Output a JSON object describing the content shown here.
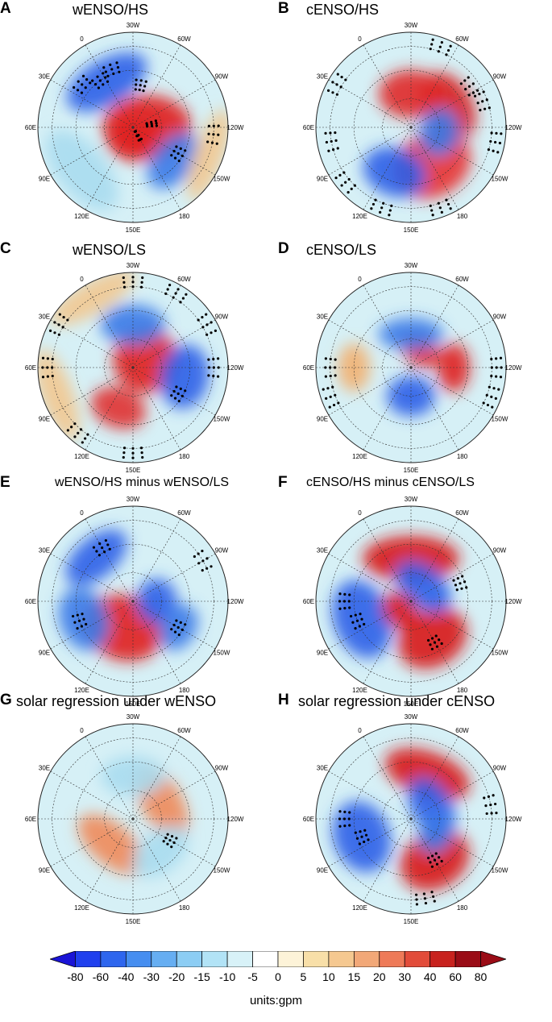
{
  "panels": [
    {
      "letter": "A",
      "title": "wENSO/HS",
      "lon_labels": [
        "0",
        "30W",
        "60W",
        "90W",
        "120W",
        "150W",
        "180",
        "150E",
        "120E",
        "90E",
        "60E",
        "30E"
      ],
      "blobs": [
        [
          "#2b5fe8",
          -30,
          0.55,
          55,
          28
        ],
        [
          "#e02020",
          90,
          0.15,
          40,
          55
        ],
        [
          "#e02020",
          175,
          0.1,
          35,
          30
        ],
        [
          "#3a7ae8",
          130,
          0.55,
          40,
          25
        ],
        [
          "#f2c890",
          110,
          0.85,
          60,
          18
        ],
        [
          "#a8dcef",
          230,
          0.7,
          60,
          30
        ]
      ],
      "dots": [
        [
          -20,
          0.65
        ],
        [
          -35,
          0.6
        ],
        [
          -50,
          0.7
        ],
        [
          10,
          0.45
        ],
        [
          80,
          0.2
        ],
        [
          150,
          0.1
        ],
        [
          120,
          0.55
        ],
        [
          95,
          0.85
        ]
      ]
    },
    {
      "letter": "B",
      "title": "cENSO/HS",
      "lon_labels": [
        "0",
        "30W",
        "60W",
        "90W",
        "120W",
        "150W",
        "180",
        "150E",
        "120E",
        "90E",
        "60E",
        "30E"
      ],
      "blobs": [
        [
          "#d8201c",
          60,
          0.45,
          45,
          30
        ],
        [
          "#e83030",
          150,
          0.45,
          50,
          40
        ],
        [
          "#2b5fe8",
          200,
          0.5,
          40,
          30
        ],
        [
          "#e02828",
          0,
          0.35,
          40,
          30
        ],
        [
          "#3a7ae8",
          100,
          0.3,
          30,
          25
        ]
      ],
      "dots": [
        [
          55,
          0.75
        ],
        [
          70,
          0.8
        ],
        [
          100,
          0.9
        ],
        [
          160,
          0.9
        ],
        [
          200,
          0.9
        ],
        [
          230,
          0.9
        ],
        [
          260,
          0.85
        ],
        [
          300,
          0.9
        ],
        [
          20,
          0.9
        ]
      ]
    },
    {
      "letter": "C",
      "title": "wENSO/LS",
      "lon_labels": [
        "0",
        "30W",
        "60W",
        "90W",
        "120W",
        "150W",
        "180",
        "150E",
        "120E",
        "90E",
        "60E",
        "30E"
      ],
      "blobs": [
        [
          "#e02020",
          60,
          0.15,
          40,
          40
        ],
        [
          "#2b5fe8",
          100,
          0.55,
          40,
          30
        ],
        [
          "#e03030",
          200,
          0.45,
          35,
          25
        ],
        [
          "#3a7ae8",
          0,
          0.45,
          40,
          25
        ],
        [
          "#f2c890",
          250,
          0.85,
          60,
          20
        ],
        [
          "#f2c890",
          330,
          0.85,
          60,
          20
        ]
      ],
      "dots": [
        [
          0,
          0.9
        ],
        [
          30,
          0.9
        ],
        [
          60,
          0.9
        ],
        [
          90,
          0.85
        ],
        [
          180,
          0.9
        ],
        [
          220,
          0.9
        ],
        [
          270,
          0.9
        ],
        [
          300,
          0.9
        ],
        [
          120,
          0.55
        ]
      ]
    },
    {
      "letter": "D",
      "title": "cENSO/LS",
      "lon_labels": [
        "0",
        "30W",
        "60W",
        "90W",
        "120W",
        "150W",
        "180",
        "150E",
        "120E",
        "90E",
        "60E",
        "30E"
      ],
      "blobs": [
        [
          "#e02020",
          90,
          0.45,
          30,
          20
        ],
        [
          "#e02020",
          30,
          0.2,
          25,
          18
        ],
        [
          "#2b5fe8",
          180,
          0.3,
          30,
          25
        ],
        [
          "#3a7ae8",
          0,
          0.35,
          40,
          20
        ],
        [
          "#f2b070",
          270,
          0.6,
          30,
          20
        ]
      ],
      "dots": [
        [
          90,
          0.9
        ],
        [
          110,
          0.9
        ],
        [
          250,
          0.9
        ],
        [
          270,
          0.85
        ]
      ]
    },
    {
      "letter": "E",
      "title": "wENSO/HS minus wENSO/LS",
      "lon_labels": [
        "0",
        "30W",
        "60W",
        "90W",
        "120W",
        "150W",
        "180",
        "150E",
        "120E",
        "90E",
        "60E",
        "30E"
      ],
      "blobs": [
        [
          "#e02020",
          200,
          0.3,
          50,
          40
        ],
        [
          "#2b5fe8",
          90,
          0.25,
          28,
          25
        ],
        [
          "#2b5fe8",
          -40,
          0.6,
          45,
          25
        ],
        [
          "#3a7ae8",
          120,
          0.55,
          30,
          22
        ],
        [
          "#3a7ae8",
          250,
          0.55,
          40,
          30
        ]
      ],
      "dots": [
        [
          -30,
          0.65
        ],
        [
          120,
          0.55
        ],
        [
          250,
          0.6
        ],
        [
          60,
          0.85
        ]
      ]
    },
    {
      "letter": "F",
      "title": "cENSO/HS minus cENSO/LS",
      "lon_labels": [
        "0",
        "30W",
        "60W",
        "90W",
        "120W",
        "150W",
        "180",
        "150E",
        "120E",
        "90E",
        "60E",
        "30E"
      ],
      "blobs": [
        [
          "#d81818",
          0,
          0.45,
          60,
          28
        ],
        [
          "#d81818",
          150,
          0.45,
          45,
          35
        ],
        [
          "#2b5fe8",
          40,
          0.2,
          40,
          25
        ],
        [
          "#2b5fe8",
          250,
          0.55,
          50,
          35
        ],
        [
          "#d81818",
          230,
          0.15,
          25,
          20
        ]
      ],
      "dots": [
        [
          70,
          0.55
        ],
        [
          250,
          0.6
        ],
        [
          270,
          0.7
        ],
        [
          150,
          0.5
        ]
      ]
    },
    {
      "letter": "G",
      "title": "solar regression under wENSO",
      "lon_labels": [
        "0",
        "30W",
        "60W",
        "90W",
        "120W",
        "150W",
        "180",
        "150E",
        "120E",
        "90E",
        "60E",
        "30E"
      ],
      "blobs": [
        [
          "#f08a5a",
          60,
          0.35,
          50,
          25
        ],
        [
          "#f08a5a",
          220,
          0.35,
          50,
          25
        ],
        [
          "#a8dcef",
          0,
          0.45,
          40,
          25
        ],
        [
          "#a8dcef",
          140,
          0.45,
          40,
          25
        ]
      ],
      "dots": [
        [
          120,
          0.45
        ]
      ]
    },
    {
      "letter": "H",
      "title": "solar regression under cENSO",
      "lon_labels": [
        "0",
        "30W",
        "60W",
        "90W",
        "120W",
        "150W",
        "180",
        "150E",
        "120E",
        "90E",
        "60E",
        "30E"
      ],
      "blobs": [
        [
          "#d81818",
          20,
          0.5,
          55,
          28
        ],
        [
          "#d81818",
          150,
          0.5,
          45,
          35
        ],
        [
          "#2b5fe8",
          60,
          0.25,
          40,
          25
        ],
        [
          "#2b5fe8",
          250,
          0.55,
          45,
          35
        ],
        [
          "#3a7ae8",
          120,
          0.3,
          25,
          20
        ]
      ],
      "dots": [
        [
          80,
          0.85
        ],
        [
          150,
          0.5
        ],
        [
          170,
          0.85
        ],
        [
          250,
          0.55
        ],
        [
          270,
          0.7
        ]
      ]
    }
  ],
  "colorbar": {
    "ticks": [
      "-80",
      "-60",
      "-40",
      "-30",
      "-20",
      "-15",
      "-10",
      "-5",
      "0",
      "5",
      "10",
      "15",
      "20",
      "30",
      "40",
      "60",
      "80"
    ],
    "colors": [
      "#1a14d6",
      "#2040ee",
      "#2e66ee",
      "#468ef0",
      "#66aef2",
      "#8ccdf4",
      "#b2e3f6",
      "#d8f2f8",
      "#ffffff",
      "#fdf3d8",
      "#f8dfa8",
      "#f5c890",
      "#f2a878",
      "#ee7a58",
      "#e24c3a",
      "#c8221e",
      "#9a0c16"
    ],
    "units_label": "units:gpm"
  }
}
